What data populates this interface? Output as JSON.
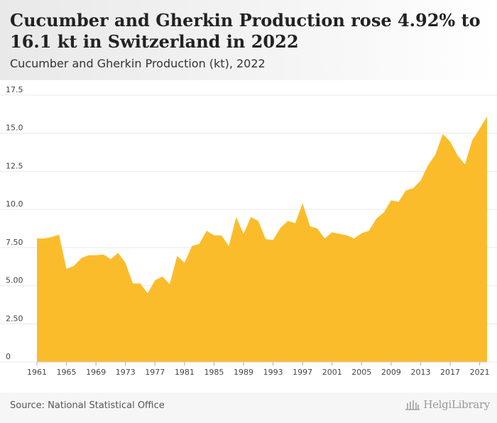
{
  "header": {
    "title": "Cucumber and Gherkin Production rose 4.92% to 16.1 kt in Switzerland in 2022",
    "subtitle": "Cucumber and Gherkin Production (kt), 2022"
  },
  "footer": {
    "source": "Source: National Statistical Office",
    "brand": "HelgiLibrary"
  },
  "colors": {
    "area_fill": "#fbbc2c",
    "gridline": "#e9e9e9",
    "axis_text": "#444444"
  },
  "chart_data": {
    "type": "area",
    "ylim": [
      0,
      17.5
    ],
    "yticks": [
      "0",
      "2.50",
      "5.00",
      "7.50",
      "10.0",
      "12.5",
      "15.0",
      "17.5"
    ],
    "xticks": [
      "1961",
      "1965",
      "1969",
      "1973",
      "1977",
      "1981",
      "1985",
      "1989",
      "1993",
      "1997",
      "2001",
      "2005",
      "2009",
      "2013",
      "2017",
      "2021"
    ],
    "grid": true,
    "series": [
      {
        "x": [
          1961,
          1962,
          1963,
          1964,
          1965,
          1966,
          1967,
          1968,
          1969,
          1970,
          1971,
          1972,
          1973,
          1974,
          1975,
          1976,
          1977,
          1978,
          1979,
          1980,
          1981,
          1982,
          1983,
          1984,
          1985,
          1986,
          1987,
          1988,
          1989,
          1990,
          1991,
          1992,
          1993,
          1994,
          1995,
          1996,
          1997,
          1998,
          1999,
          2000,
          2001,
          2002,
          2003,
          2004,
          2005,
          2006,
          2007,
          2008,
          2009,
          2010,
          2011,
          2012,
          2013,
          2014,
          2015,
          2016,
          2017,
          2018,
          2019,
          2020,
          2021,
          2022
        ],
        "values": [
          8.1,
          8.1,
          8.2,
          8.35,
          6.1,
          6.3,
          6.8,
          7.0,
          7.0,
          7.05,
          6.75,
          7.15,
          6.5,
          5.15,
          5.15,
          4.5,
          5.35,
          5.6,
          5.1,
          6.95,
          6.5,
          7.6,
          7.75,
          8.6,
          8.3,
          8.3,
          7.6,
          9.5,
          8.4,
          9.5,
          9.25,
          8.05,
          8.0,
          8.8,
          9.25,
          9.1,
          10.4,
          8.9,
          8.75,
          8.1,
          8.5,
          8.4,
          8.3,
          8.1,
          8.45,
          8.6,
          9.4,
          9.8,
          10.6,
          10.5,
          11.25,
          11.4,
          11.9,
          12.9,
          13.6,
          14.95,
          14.45,
          13.55,
          12.95,
          14.55,
          15.3,
          16.1
        ]
      }
    ]
  }
}
